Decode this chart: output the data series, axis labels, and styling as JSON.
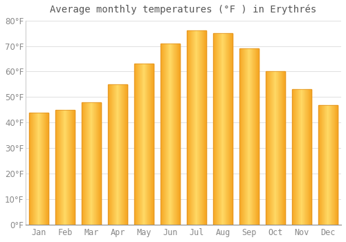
{
  "title": "Average monthly temperatures (°F ) in Erythrés",
  "months": [
    "Jan",
    "Feb",
    "Mar",
    "Apr",
    "May",
    "Jun",
    "Jul",
    "Aug",
    "Sep",
    "Oct",
    "Nov",
    "Dec"
  ],
  "values": [
    44,
    45,
    48,
    55,
    63,
    71,
    76,
    75,
    69,
    60,
    53,
    47
  ],
  "bar_color_center": "#FFD966",
  "bar_color_edge": "#F5A623",
  "background_color": "#FFFFFF",
  "grid_color": "#E0E0E0",
  "ylim": [
    0,
    80
  ],
  "yticks": [
    0,
    10,
    20,
    30,
    40,
    50,
    60,
    70,
    80
  ],
  "title_fontsize": 10,
  "tick_fontsize": 8.5,
  "bar_width": 0.75
}
